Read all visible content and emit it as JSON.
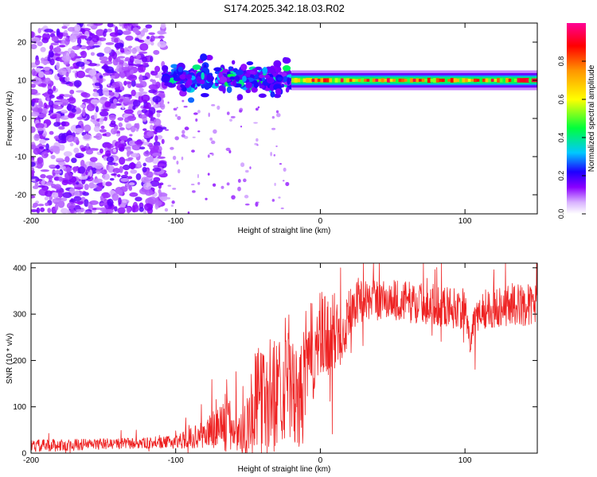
{
  "figure": {
    "title": "S174.2025.342.18.03.R02"
  },
  "chart_data": [
    {
      "type": "heatmap",
      "name": "spectrogram",
      "title": "S174.2025.342.18.03.R02",
      "xlabel": "Height of straight line (km)",
      "ylabel": "Frequency (Hz)",
      "xlim": [
        -200,
        150
      ],
      "ylim": [
        -25,
        25
      ],
      "x_ticks": [
        -200,
        -100,
        0,
        100
      ],
      "y_ticks": [
        -20,
        -10,
        0,
        10,
        20
      ],
      "colorbar": {
        "label": "Normalized spectral amplitude",
        "range": [
          0,
          1
        ],
        "ticks": [
          0.0,
          0.2,
          0.4,
          0.6,
          0.8
        ],
        "tick_labels": [
          "0.0",
          "0.2",
          "0.4",
          "0.6",
          "0.8"
        ],
        "colors": [
          "#ffffff",
          "#8a00ff",
          "#0000ff",
          "#00c8ff",
          "#00ff3c",
          "#ffff00",
          "#ff9600",
          "#ff0000",
          "#ff0096"
        ]
      },
      "features": [
        {
          "region": "noise",
          "x_range": [
            -200,
            -108
          ],
          "freq_range": [
            -25,
            25
          ],
          "amplitude": 0.1
        },
        {
          "region": "onset",
          "x_range": [
            -108,
            -20
          ],
          "center_freq": [
            9,
            12
          ],
          "amplitude": 0.3
        },
        {
          "region": "signal_band",
          "x_range": [
            -20,
            150
          ],
          "center_freq": 10,
          "freq_halfwidth": 1.2,
          "amplitude": 0.95
        }
      ]
    },
    {
      "type": "line",
      "name": "snr",
      "title": "",
      "xlabel": "Height of straight line (km)",
      "ylabel": "SNR (10 * v/v)",
      "xlim": [
        -200,
        150
      ],
      "ylim": [
        0,
        410
      ],
      "x_ticks": [
        -200,
        -100,
        0,
        100
      ],
      "y_ticks": [
        0,
        100,
        200,
        300,
        400
      ],
      "color": "#ee2222",
      "series": [
        {
          "name": "SNR",
          "x": [
            -200,
            -150,
            -110,
            -100,
            -80,
            -70,
            -60,
            -55,
            -50,
            -45,
            -35,
            -25,
            -20,
            -15,
            -10,
            -5,
            0,
            5,
            10,
            15,
            20,
            25,
            30,
            50,
            80,
            100,
            103,
            110,
            130,
            150
          ],
          "y": [
            15,
            20,
            22,
            25,
            40,
            60,
            55,
            40,
            70,
            110,
            120,
            150,
            140,
            100,
            170,
            220,
            240,
            250,
            260,
            270,
            300,
            330,
            330,
            330,
            320,
            310,
            240,
            310,
            320,
            320
          ],
          "amplitude": [
            14,
            12,
            12,
            15,
            30,
            60,
            60,
            45,
            90,
            110,
            130,
            120,
            120,
            100,
            140,
            110,
            110,
            95,
            90,
            80,
            60,
            50,
            45,
            45,
            45,
            45,
            30,
            45,
            45,
            45
          ]
        }
      ]
    }
  ]
}
